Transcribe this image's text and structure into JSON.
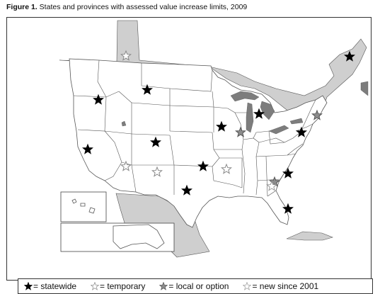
{
  "caption": {
    "label": "Figure 1.",
    "text": " States and provinces with assessed value increase limits, 2009"
  },
  "legend": [
    {
      "key": "statewide",
      "text": "= statewide",
      "color": "#000000",
      "stroke": "#000000"
    },
    {
      "key": "temporary",
      "text": "= temporary",
      "color": "#ffffff",
      "stroke": "#888888"
    },
    {
      "key": "local",
      "text": "= local or option",
      "color": "#8c8c8c",
      "stroke": "#555555"
    },
    {
      "key": "new",
      "text": "= new since 2001",
      "color": "#ffffff",
      "stroke": "#9a9a9a"
    }
  ],
  "colors": {
    "land": "#ffffff",
    "canada_mexico": "#cfcfcf",
    "water": "#7d7d7d",
    "border": "#555555"
  },
  "map_data": {
    "markers": [
      {
        "id": "oregon",
        "category": "statewide"
      },
      {
        "id": "idaho",
        "category": "statewide"
      },
      {
        "id": "california",
        "category": "statewide"
      },
      {
        "id": "colorado",
        "category": "statewide"
      },
      {
        "id": "iowa",
        "category": "statewide"
      },
      {
        "id": "michigan",
        "category": "statewide"
      },
      {
        "id": "maryland",
        "category": "statewide"
      },
      {
        "id": "new-brunswick",
        "category": "statewide"
      },
      {
        "id": "oklahoma",
        "category": "statewide"
      },
      {
        "id": "texas",
        "category": "statewide"
      },
      {
        "id": "south-carolina",
        "category": "statewide"
      },
      {
        "id": "florida",
        "category": "statewide"
      },
      {
        "id": "alberta",
        "category": "temporary"
      },
      {
        "id": "arizona",
        "category": "temporary"
      },
      {
        "id": "new-mexico",
        "category": "temporary"
      },
      {
        "id": "arkansas",
        "category": "temporary"
      },
      {
        "id": "illinois",
        "category": "local"
      },
      {
        "id": "georgia",
        "category": "local"
      },
      {
        "id": "new-york",
        "category": "local"
      },
      {
        "id": "georgia-new",
        "category": "new"
      }
    ]
  }
}
